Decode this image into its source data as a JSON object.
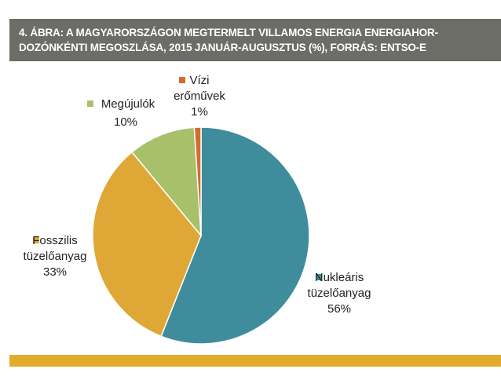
{
  "header": {
    "lead": "4. ÁBRA:",
    "title_line1": " A MAGYARORSZÁGON MEGTERMELT VILLAMOS ENERGIA ENERGIAHOR-",
    "title_line2": "DOZÓNKÉNTI MEGOSZLÁSA, 2015 JANUÁR-AUGUSZTUS (%), FORRÁS: ENTSO-E"
  },
  "chart_data": {
    "type": "pie",
    "slices": [
      {
        "label_lines": [
          "Nukleáris",
          "tüzelőanyag"
        ],
        "value": 56,
        "value_label": "56%",
        "color": "#3f8d9c"
      },
      {
        "label_lines": [
          "Fosszilis",
          "tüzelőanyag"
        ],
        "value": 33,
        "value_label": "33%",
        "color": "#dfa736"
      },
      {
        "label_lines": [
          "Megújulók"
        ],
        "value": 10,
        "value_label": "10%",
        "color": "#a9c06b"
      },
      {
        "label_lines": [
          "Vízi",
          "erőművek"
        ],
        "value": 1,
        "value_label": "1%",
        "color": "#d26e2c"
      }
    ],
    "legend": "labels beside slices"
  }
}
